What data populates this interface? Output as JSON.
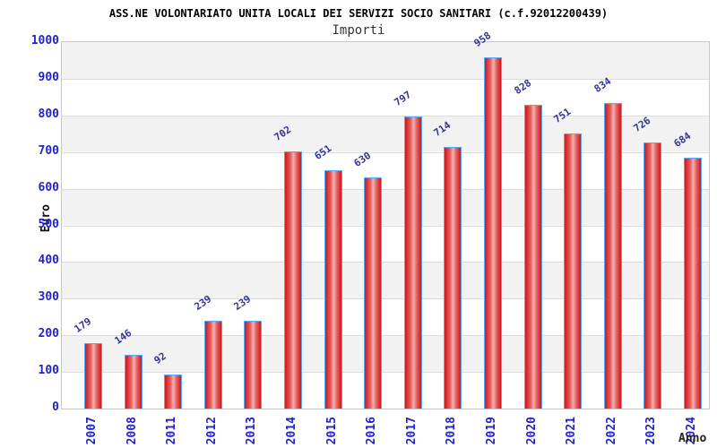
{
  "chart_data": {
    "type": "bar",
    "title": "ASS.NE VOLONTARIATO UNITA LOCALI DEI SERVIZI SOCIO SANITARI (c.f.92012200439)",
    "subtitle": "Importi",
    "xlabel": "Anno",
    "ylabel": "Euro",
    "categories": [
      "2007",
      "2008",
      "2011",
      "2012",
      "2013",
      "2014",
      "2015",
      "2016",
      "2017",
      "2018",
      "2019",
      "2020",
      "2021",
      "2022",
      "2023",
      "2024"
    ],
    "values": [
      179,
      146,
      92,
      239,
      239,
      702,
      651,
      630,
      797,
      714,
      958,
      828,
      751,
      834,
      726,
      684
    ],
    "ylim": [
      0,
      1000
    ],
    "yticks": [
      0,
      100,
      200,
      300,
      400,
      500,
      600,
      700,
      800,
      900,
      1000
    ],
    "grid": "horizontal-bands",
    "legend_position": "none"
  },
  "colors": {
    "bar_border": "#55aaff",
    "bar_dark": "#cc1a1a",
    "bar_mid": "#e86060",
    "bar_light": "#f2b2b2",
    "value_label": "#333399",
    "axis_label": "#2222cc",
    "band_gray": "#f2f2f2",
    "band_white": "#ffffff",
    "grid_line": "#dcdcdc",
    "plot_border": "#c8c8c8",
    "title_color": "#000000"
  }
}
